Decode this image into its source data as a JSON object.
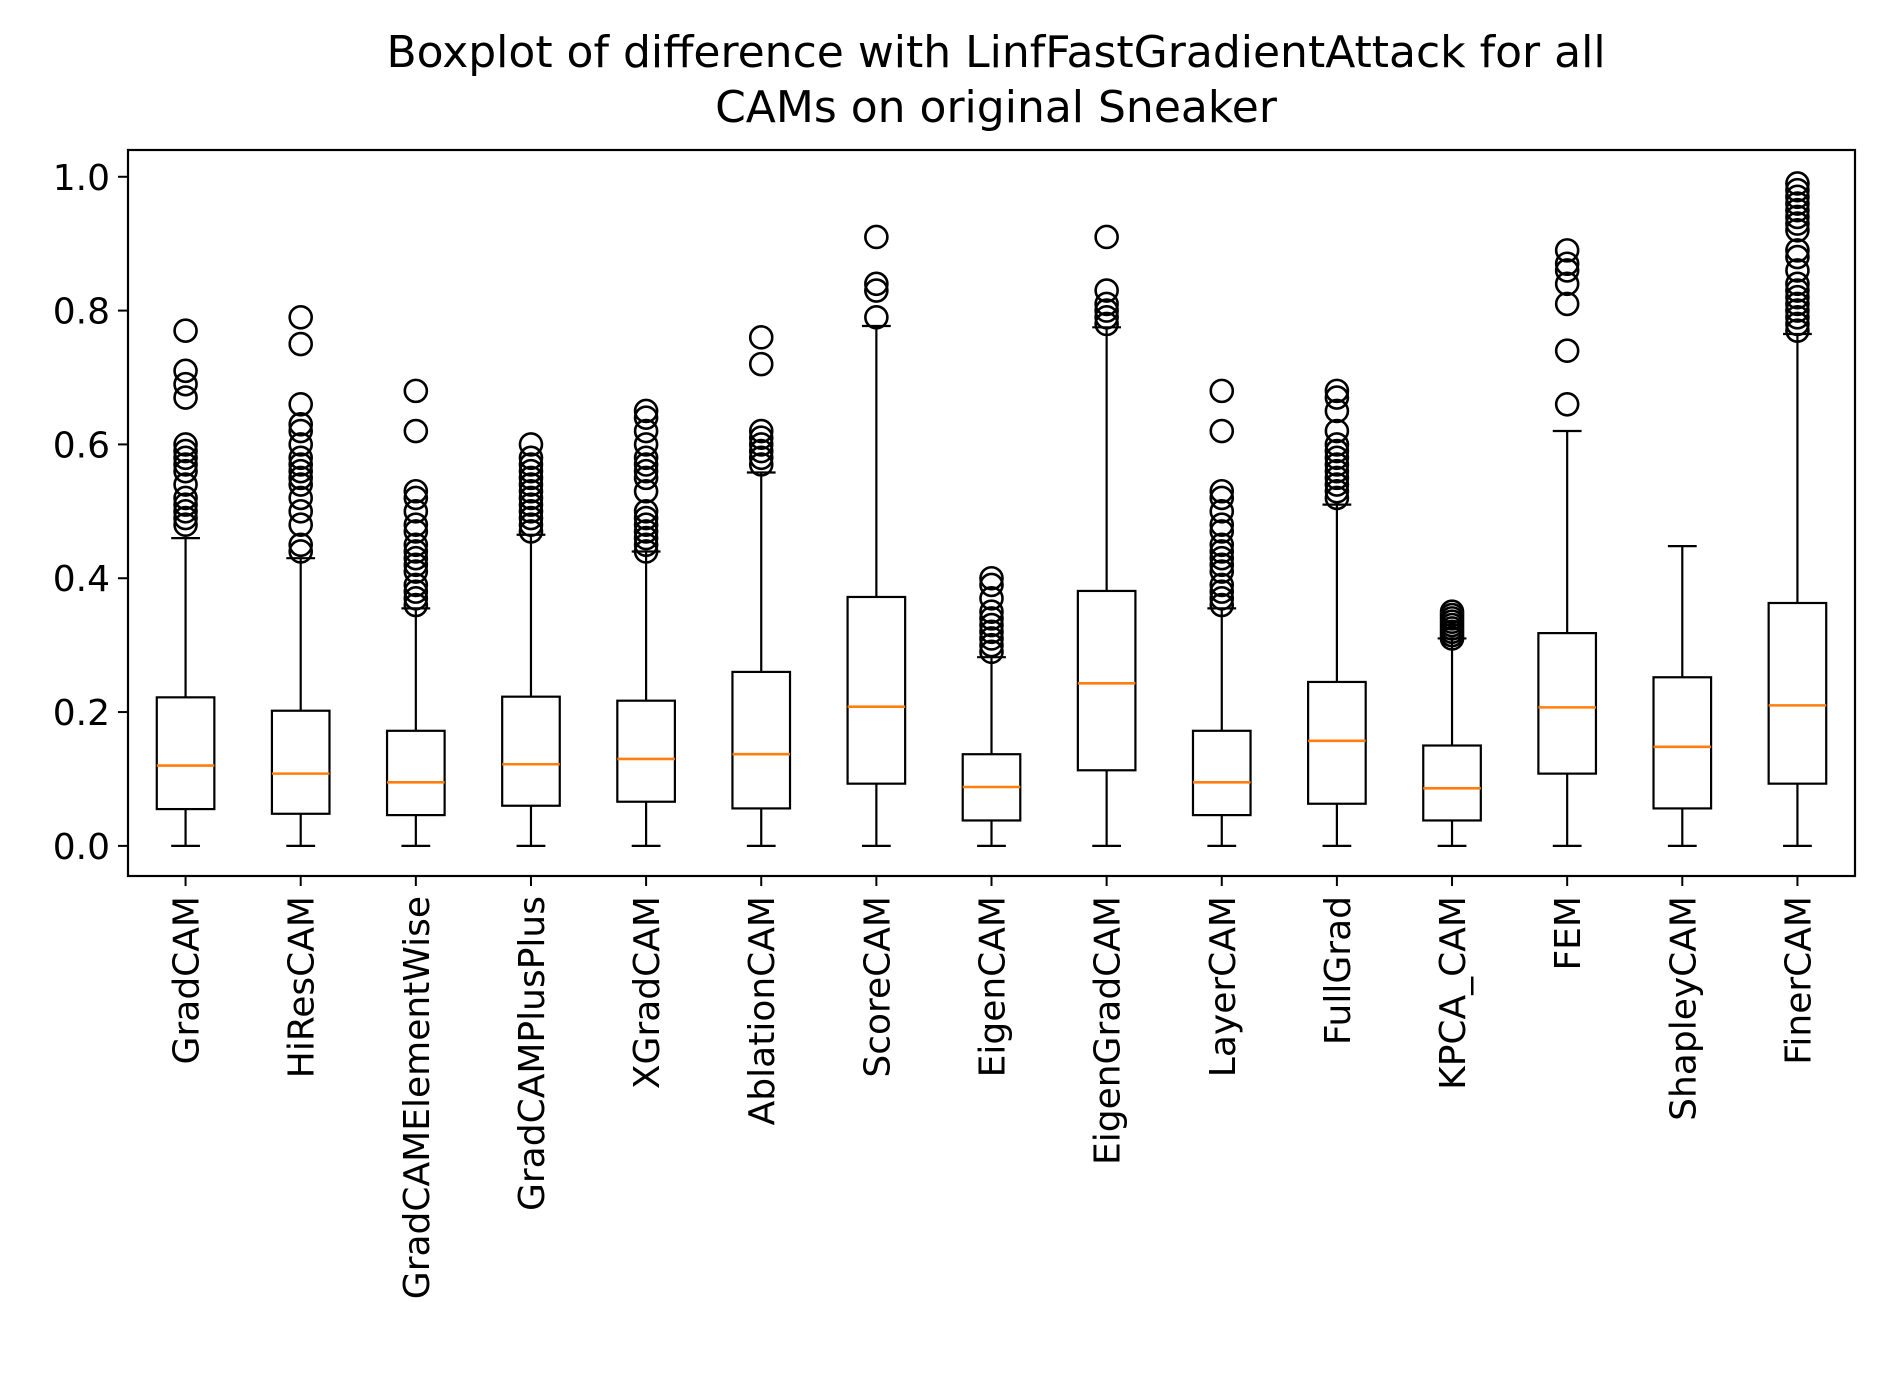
{
  "chart_data": {
    "type": "boxplot",
    "title_lines": [
      "Boxplot of difference with LinfFastGradientAttack for all",
      "CAMs on original Sneaker"
    ],
    "xlabel": "",
    "ylabel": "",
    "ylim": [
      -0.045,
      1.04
    ],
    "yticks": [
      0.0,
      0.2,
      0.4,
      0.6,
      0.8,
      1.0
    ],
    "ytick_labels": [
      "0.0",
      "0.2",
      "0.4",
      "0.6",
      "0.8",
      "1.0"
    ],
    "grid": false,
    "colors": {
      "box": "#000000",
      "median": "#ff7f0e",
      "background": "#ffffff"
    },
    "categories": [
      "GradCAM",
      "HiResCAM",
      "GradCAMElementWise",
      "GradCAMPlusPlus",
      "XGradCAM",
      "AblationCAM",
      "ScoreCAM",
      "EigenCAM",
      "EigenGradCAM",
      "LayerCAM",
      "FullGrad",
      "KPCA_CAM",
      "FEM",
      "ShapleyCAM",
      "FinerCAM"
    ],
    "boxes": [
      {
        "name": "GradCAM",
        "whislo": 0.0,
        "q1": 0.055,
        "med": 0.12,
        "q3": 0.222,
        "whishi": 0.46,
        "fliers": [
          0.48,
          0.49,
          0.5,
          0.51,
          0.52,
          0.54,
          0.56,
          0.57,
          0.58,
          0.59,
          0.6,
          0.67,
          0.69,
          0.71,
          0.77
        ]
      },
      {
        "name": "HiResCAM",
        "whislo": 0.0,
        "q1": 0.048,
        "med": 0.108,
        "q3": 0.202,
        "whishi": 0.43,
        "fliers": [
          0.44,
          0.45,
          0.48,
          0.5,
          0.52,
          0.54,
          0.55,
          0.56,
          0.57,
          0.58,
          0.6,
          0.62,
          0.63,
          0.66,
          0.75,
          0.79
        ]
      },
      {
        "name": "GradCAMElementWise",
        "whislo": 0.0,
        "q1": 0.046,
        "med": 0.095,
        "q3": 0.172,
        "whishi": 0.355,
        "fliers": [
          0.36,
          0.37,
          0.38,
          0.39,
          0.41,
          0.42,
          0.43,
          0.44,
          0.45,
          0.47,
          0.48,
          0.5,
          0.52,
          0.53,
          0.62,
          0.68
        ]
      },
      {
        "name": "GradCAMPlusPlus",
        "whislo": 0.0,
        "q1": 0.06,
        "med": 0.122,
        "q3": 0.223,
        "whishi": 0.465,
        "fliers": [
          0.47,
          0.48,
          0.49,
          0.5,
          0.51,
          0.52,
          0.53,
          0.54,
          0.55,
          0.56,
          0.57,
          0.58,
          0.6
        ]
      },
      {
        "name": "XGradCAM",
        "whislo": 0.0,
        "q1": 0.066,
        "med": 0.13,
        "q3": 0.217,
        "whishi": 0.44,
        "fliers": [
          0.44,
          0.45,
          0.46,
          0.47,
          0.48,
          0.49,
          0.5,
          0.53,
          0.55,
          0.56,
          0.57,
          0.58,
          0.6,
          0.62,
          0.64,
          0.65
        ]
      },
      {
        "name": "AblationCAM",
        "whislo": 0.0,
        "q1": 0.056,
        "med": 0.137,
        "q3": 0.26,
        "whishi": 0.558,
        "fliers": [
          0.57,
          0.58,
          0.59,
          0.6,
          0.61,
          0.62,
          0.72,
          0.76
        ]
      },
      {
        "name": "ScoreCAM",
        "whislo": 0.0,
        "q1": 0.093,
        "med": 0.208,
        "q3": 0.372,
        "whishi": 0.777,
        "fliers": [
          0.79,
          0.83,
          0.84,
          0.91
        ]
      },
      {
        "name": "EigenCAM",
        "whislo": 0.0,
        "q1": 0.038,
        "med": 0.088,
        "q3": 0.137,
        "whishi": 0.282,
        "fliers": [
          0.29,
          0.3,
          0.31,
          0.32,
          0.33,
          0.34,
          0.35,
          0.37,
          0.39,
          0.4
        ]
      },
      {
        "name": "EigenGradCAM",
        "whislo": 0.0,
        "q1": 0.113,
        "med": 0.243,
        "q3": 0.381,
        "whishi": 0.775,
        "fliers": [
          0.78,
          0.79,
          0.8,
          0.81,
          0.83,
          0.91
        ]
      },
      {
        "name": "LayerCAM",
        "whislo": 0.0,
        "q1": 0.046,
        "med": 0.095,
        "q3": 0.172,
        "whishi": 0.355,
        "fliers": [
          0.36,
          0.37,
          0.38,
          0.39,
          0.41,
          0.42,
          0.43,
          0.44,
          0.45,
          0.47,
          0.48,
          0.5,
          0.52,
          0.53,
          0.62,
          0.68
        ]
      },
      {
        "name": "FullGrad",
        "whislo": 0.0,
        "q1": 0.063,
        "med": 0.157,
        "q3": 0.245,
        "whishi": 0.51,
        "fliers": [
          0.52,
          0.53,
          0.54,
          0.55,
          0.56,
          0.57,
          0.58,
          0.59,
          0.6,
          0.62,
          0.65,
          0.67,
          0.68
        ]
      },
      {
        "name": "KPCA_CAM",
        "whislo": 0.0,
        "q1": 0.038,
        "med": 0.086,
        "q3": 0.15,
        "whishi": 0.31,
        "fliers": [
          0.31,
          0.315,
          0.32,
          0.325,
          0.33,
          0.335,
          0.34,
          0.345,
          0.35
        ]
      },
      {
        "name": "FEM",
        "whislo": 0.0,
        "q1": 0.108,
        "med": 0.207,
        "q3": 0.318,
        "whishi": 0.62,
        "fliers": [
          0.66,
          0.74,
          0.81,
          0.84,
          0.86,
          0.87,
          0.89
        ]
      },
      {
        "name": "ShapleyCAM",
        "whislo": 0.0,
        "q1": 0.056,
        "med": 0.148,
        "q3": 0.252,
        "whishi": 0.448,
        "fliers": []
      },
      {
        "name": "FinerCAM",
        "whislo": 0.0,
        "q1": 0.093,
        "med": 0.21,
        "q3": 0.363,
        "whishi": 0.765,
        "fliers": [
          0.77,
          0.78,
          0.79,
          0.8,
          0.81,
          0.82,
          0.83,
          0.84,
          0.86,
          0.88,
          0.89,
          0.92,
          0.93,
          0.94,
          0.95,
          0.96,
          0.97,
          0.98,
          0.99
        ]
      }
    ]
  }
}
